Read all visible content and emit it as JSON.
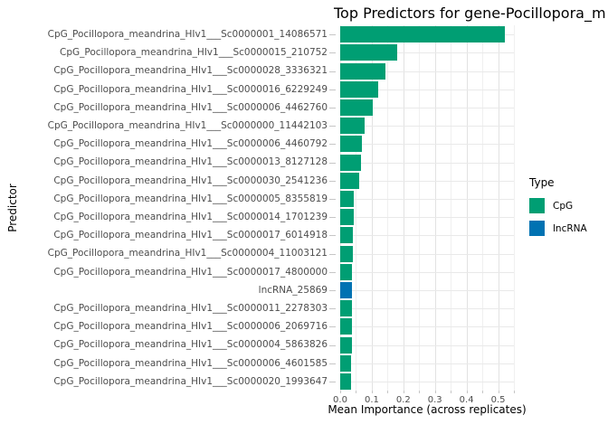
{
  "title": "Top Predictors for gene-Pocillopora_m",
  "axes": {
    "x_label": "Mean Importance (across replicates)",
    "y_label": "Predictor"
  },
  "legend": {
    "title": "Type",
    "items": [
      {
        "label": "CpG",
        "color": "#009E73"
      },
      {
        "label": "lncRNA",
        "color": "#0072B2"
      }
    ]
  },
  "chart_data": {
    "type": "bar",
    "orientation": "horizontal",
    "title": "Top Predictors for gene-Pocillopora_m",
    "xlabel": "Mean Importance (across replicates)",
    "ylabel": "Predictor",
    "xlim": [
      0,
      0.55
    ],
    "x_major_ticks": [
      0.0,
      0.1,
      0.2,
      0.3,
      0.4,
      0.5
    ],
    "x_minor_ticks": [
      0.05,
      0.15,
      0.25,
      0.35,
      0.45,
      0.55
    ],
    "x_tick_labels": [
      "0.0",
      "0.1",
      "0.2",
      "0.3",
      "0.4",
      "0.5"
    ],
    "grid": "major+minor",
    "legend_position": "right",
    "colors": {
      "CpG": "#009E73",
      "lncRNA": "#0072B2"
    },
    "bars": [
      {
        "label": "CpG_Pocillopora_meandrina_HIv1___Sc0000001_14086571",
        "value": 0.52,
        "type": "CpG"
      },
      {
        "label": "CpG_Pocillopora_meandrina_HIv1___Sc0000015_210752",
        "value": 0.18,
        "type": "CpG"
      },
      {
        "label": "CpG_Pocillopora_meandrina_HIv1___Sc0000028_3336321",
        "value": 0.142,
        "type": "CpG"
      },
      {
        "label": "CpG_Pocillopora_meandrina_HIv1___Sc0000016_6229249",
        "value": 0.121,
        "type": "CpG"
      },
      {
        "label": "CpG_Pocillopora_meandrina_HIv1___Sc0000006_4462760",
        "value": 0.104,
        "type": "CpG"
      },
      {
        "label": "CpG_Pocillopora_meandrina_HIv1___Sc0000000_11442103",
        "value": 0.076,
        "type": "CpG"
      },
      {
        "label": "CpG_Pocillopora_meandrina_HIv1___Sc0000006_4460792",
        "value": 0.07,
        "type": "CpG"
      },
      {
        "label": "CpG_Pocillopora_meandrina_HIv1___Sc0000013_8127128",
        "value": 0.066,
        "type": "CpG"
      },
      {
        "label": "CpG_Pocillopora_meandrina_HIv1___Sc0000030_2541236",
        "value": 0.059,
        "type": "CpG"
      },
      {
        "label": "CpG_Pocillopora_meandrina_HIv1___Sc0000005_8355819",
        "value": 0.044,
        "type": "CpG"
      },
      {
        "label": "CpG_Pocillopora_meandrina_HIv1___Sc0000014_1701239",
        "value": 0.042,
        "type": "CpG"
      },
      {
        "label": "CpG_Pocillopora_meandrina_HIv1___Sc0000017_6014918",
        "value": 0.041,
        "type": "CpG"
      },
      {
        "label": "CpG_Pocillopora_meandrina_HIv1___Sc0000004_11003121",
        "value": 0.04,
        "type": "CpG"
      },
      {
        "label": "CpG_Pocillopora_meandrina_HIv1___Sc0000017_4800000",
        "value": 0.038,
        "type": "CpG"
      },
      {
        "label": "lncRNA_25869",
        "value": 0.037,
        "type": "lncRNA"
      },
      {
        "label": "CpG_Pocillopora_meandrina_HIv1___Sc0000011_2278303",
        "value": 0.037,
        "type": "CpG"
      },
      {
        "label": "CpG_Pocillopora_meandrina_HIv1___Sc0000006_2069716",
        "value": 0.036,
        "type": "CpG"
      },
      {
        "label": "CpG_Pocillopora_meandrina_HIv1___Sc0000004_5863826",
        "value": 0.036,
        "type": "CpG"
      },
      {
        "label": "CpG_Pocillopora_meandrina_HIv1___Sc0000006_4601585",
        "value": 0.035,
        "type": "CpG"
      },
      {
        "label": "CpG_Pocillopora_meandrina_HIv1___Sc0000020_1993647",
        "value": 0.034,
        "type": "CpG"
      }
    ]
  }
}
